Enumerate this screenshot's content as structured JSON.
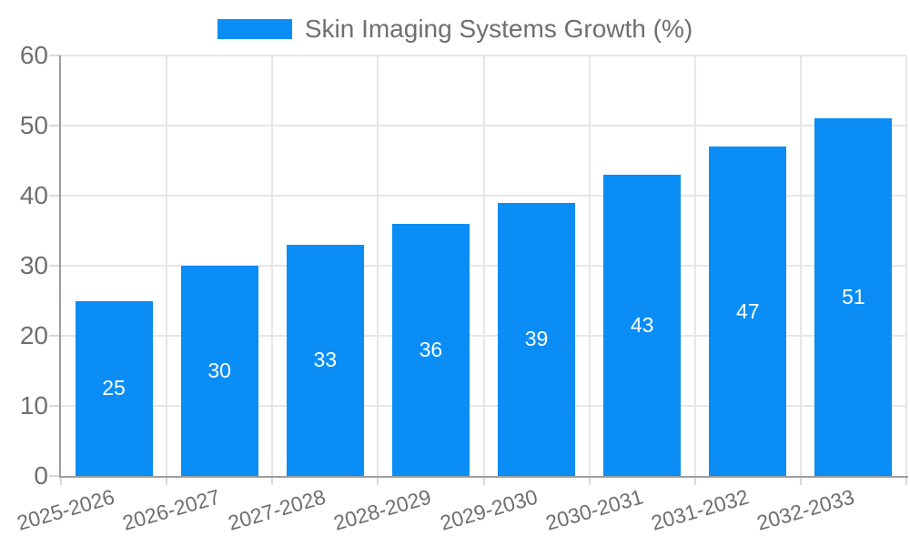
{
  "legend": {
    "label": "Skin Imaging Systems Growth (%)",
    "swatch_color": "#0a8df5"
  },
  "chart_data": {
    "type": "bar",
    "title": "Skin Imaging Systems Growth (%)",
    "categories": [
      "2025-2026",
      "2026-2027",
      "2027-2028",
      "2028-2029",
      "2029-2030",
      "2030-2031",
      "2031-2032",
      "2032-2033"
    ],
    "values": [
      25,
      30,
      33,
      36,
      39,
      43,
      47,
      51
    ],
    "xlabel": "",
    "ylabel": "",
    "ylim": [
      0,
      60
    ],
    "yticks": [
      0,
      10,
      20,
      30,
      40,
      50,
      60
    ],
    "grid": true,
    "legend_position": "top",
    "bar_color": "#0a8df5",
    "bar_label_color": "#ffffff",
    "axis_color": "#9e9e9e",
    "grid_color": "#e6e6e6",
    "tick_text_color": "#6f6f6f"
  }
}
